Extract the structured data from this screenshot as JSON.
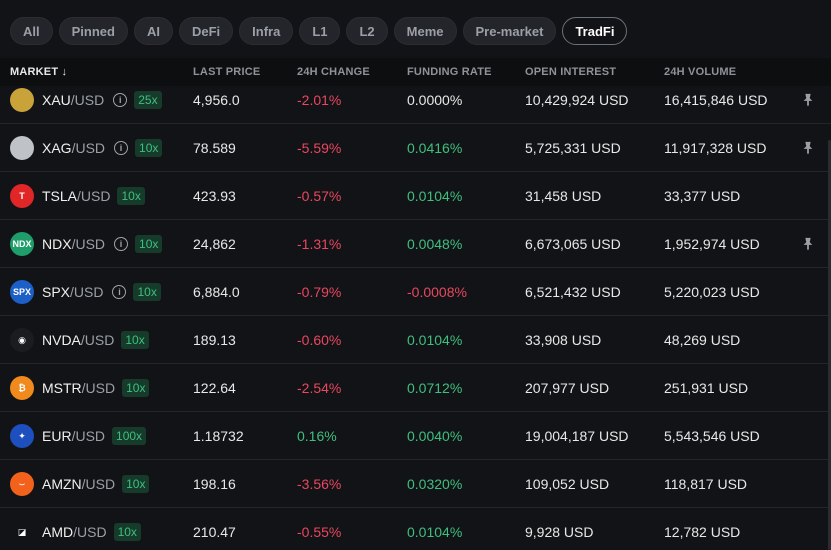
{
  "filters": [
    {
      "label": "All",
      "active": false
    },
    {
      "label": "Pinned",
      "active": false
    },
    {
      "label": "AI",
      "active": false
    },
    {
      "label": "DeFi",
      "active": false
    },
    {
      "label": "Infra",
      "active": false
    },
    {
      "label": "L1",
      "active": false
    },
    {
      "label": "L2",
      "active": false
    },
    {
      "label": "Meme",
      "active": false
    },
    {
      "label": "Pre-market",
      "active": false
    },
    {
      "label": "TradFi",
      "active": true
    }
  ],
  "columns": {
    "market": "MARKET ↓",
    "last_price": "LAST PRICE",
    "change_24h": "24H CHANGE",
    "funding_rate": "FUNDING RATE",
    "open_interest": "OPEN INTEREST",
    "volume_24h": "24H VOLUME"
  },
  "colors": {
    "positive": "#3fbf7f",
    "negative": "#e8475f",
    "leverage_bg": "#163b2b"
  },
  "rows": [
    {
      "symbol": "XAU",
      "quote": "/USD",
      "info": true,
      "leverage": "25x",
      "price": "4,956.0",
      "change": "-2.01%",
      "change_dir": "neg",
      "funding": "0.0000%",
      "funding_dir": "neutral",
      "oi": "10,429,924 USD",
      "volume": "16,415,846 USD",
      "pinned": true,
      "icon": "gold-bar-icon",
      "logo_color": "#c9a33a",
      "logo_text": ""
    },
    {
      "symbol": "XAG",
      "quote": "/USD",
      "info": true,
      "leverage": "10x",
      "price": "78.589",
      "change": "-5.59%",
      "change_dir": "neg",
      "funding": "0.0416%",
      "funding_dir": "pos",
      "oi": "5,725,331 USD",
      "volume": "11,917,328 USD",
      "pinned": true,
      "icon": "silver-bar-icon",
      "logo_color": "#bfc3c8",
      "logo_text": ""
    },
    {
      "symbol": "TSLA",
      "quote": "/USD",
      "info": false,
      "leverage": "10x",
      "price": "423.93",
      "change": "-0.57%",
      "change_dir": "neg",
      "funding": "0.0104%",
      "funding_dir": "pos",
      "oi": "31,458 USD",
      "volume": "33,377 USD",
      "pinned": false,
      "icon": "tesla-logo-icon",
      "logo_color": "#e02626",
      "logo_text": "T"
    },
    {
      "symbol": "NDX",
      "quote": "/USD",
      "info": true,
      "leverage": "10x",
      "price": "24,862",
      "change": "-1.31%",
      "change_dir": "neg",
      "funding": "0.0048%",
      "funding_dir": "pos",
      "oi": "6,673,065 USD",
      "volume": "1,952,974 USD",
      "pinned": true,
      "icon": "ndx-logo-icon",
      "logo_color": "#1f9d6a",
      "logo_text": "NDX"
    },
    {
      "symbol": "SPX",
      "quote": "/USD",
      "info": true,
      "leverage": "10x",
      "price": "6,884.0",
      "change": "-0.79%",
      "change_dir": "neg",
      "funding": "-0.0008%",
      "funding_dir": "neg",
      "oi": "6,521,432 USD",
      "volume": "5,220,023 USD",
      "pinned": false,
      "icon": "spx-logo-icon",
      "logo_color": "#1b5fc7",
      "logo_text": "SPX"
    },
    {
      "symbol": "NVDA",
      "quote": "/USD",
      "info": false,
      "leverage": "10x",
      "price": "189.13",
      "change": "-0.60%",
      "change_dir": "neg",
      "funding": "0.0104%",
      "funding_dir": "pos",
      "oi": "33,908 USD",
      "volume": "48,269 USD",
      "pinned": false,
      "icon": "nvidia-logo-icon",
      "logo_color": "#1a1c1f",
      "logo_text": "◉"
    },
    {
      "symbol": "MSTR",
      "quote": "/USD",
      "info": false,
      "leverage": "10x",
      "price": "122.64",
      "change": "-2.54%",
      "change_dir": "neg",
      "funding": "0.0712%",
      "funding_dir": "pos",
      "oi": "207,977 USD",
      "volume": "251,931 USD",
      "pinned": false,
      "icon": "bitcoin-logo-icon",
      "logo_color": "#f08a1c",
      "logo_text": "₿"
    },
    {
      "symbol": "EUR",
      "quote": "/USD",
      "info": false,
      "leverage": "100x",
      "price": "1.18732",
      "change": "0.16%",
      "change_dir": "pos",
      "funding": "0.0040%",
      "funding_dir": "pos",
      "oi": "19,004,187 USD",
      "volume": "5,543,546 USD",
      "pinned": false,
      "icon": "eu-flag-icon",
      "logo_color": "#1d4fbf",
      "logo_text": "✦"
    },
    {
      "symbol": "AMZN",
      "quote": "/USD",
      "info": false,
      "leverage": "10x",
      "price": "198.16",
      "change": "-3.56%",
      "change_dir": "neg",
      "funding": "0.0320%",
      "funding_dir": "pos",
      "oi": "109,052 USD",
      "volume": "118,817 USD",
      "pinned": false,
      "icon": "amazon-logo-icon",
      "logo_color": "#f2621c",
      "logo_text": "⌣"
    },
    {
      "symbol": "AMD",
      "quote": "/USD",
      "info": false,
      "leverage": "10x",
      "price": "210.47",
      "change": "-0.55%",
      "change_dir": "neg",
      "funding": "0.0104%",
      "funding_dir": "pos",
      "oi": "9,928 USD",
      "volume": "12,782 USD",
      "pinned": false,
      "icon": "amd-logo-icon",
      "logo_color": "#121316",
      "logo_text": "◪"
    }
  ]
}
